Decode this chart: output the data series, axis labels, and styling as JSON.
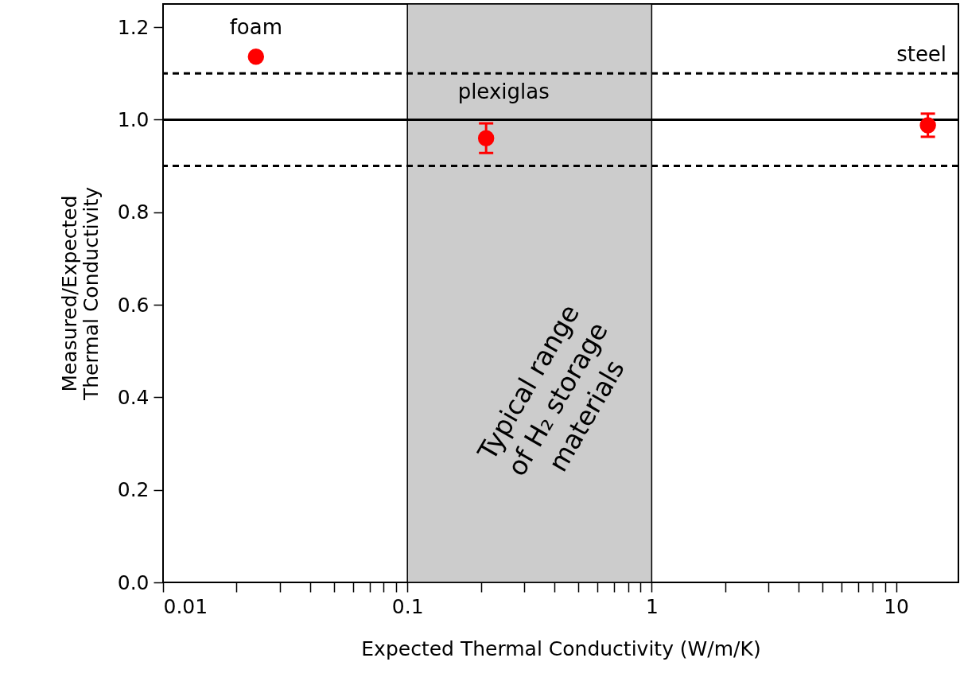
{
  "chart_data": {
    "type": "scatter",
    "xlabel": "Expected Thermal Conductivity (W/m/K)",
    "ylabel": "Measured/Expected\nThermal Conductivity",
    "x": [
      0.024,
      0.21,
      13.5
    ],
    "series": [
      {
        "color": "#ff0000",
        "values": [
          1.136,
          0.96,
          0.988
        ],
        "errors": [
          null,
          0.032,
          0.025
        ]
      }
    ],
    "log": "x",
    "xlim": [
      0.01,
      18
    ],
    "xticks": [
      0.01,
      {
        "value": 0.02,
        "label": null
      },
      {
        "value": 0.03,
        "label": null
      },
      {
        "value": 0.04,
        "label": null
      },
      {
        "value": 0.05,
        "label": null
      },
      {
        "value": 0.06,
        "label": null
      },
      {
        "value": 0.07,
        "label": null
      },
      {
        "value": 0.08,
        "label": null
      },
      {
        "value": 0.09,
        "label": null
      },
      0.1,
      {
        "value": 0.2,
        "label": null
      },
      {
        "value": 0.3,
        "label": null
      },
      {
        "value": 0.4,
        "label": null
      },
      {
        "value": 0.5,
        "label": null
      },
      {
        "value": 0.6,
        "label": null
      },
      {
        "value": 0.7,
        "label": null
      },
      {
        "value": 0.8,
        "label": null
      },
      {
        "value": 0.9,
        "label": null
      },
      1,
      {
        "value": 2,
        "label": null
      },
      {
        "value": 3,
        "label": null
      },
      {
        "value": 4,
        "label": null
      },
      {
        "value": 5,
        "label": null
      },
      {
        "value": 6,
        "label": null
      },
      {
        "value": 7,
        "label": null
      },
      {
        "value": 8,
        "label": null
      },
      {
        "value": 9,
        "label": null
      },
      10
    ],
    "ylim": [
      0,
      1.25
    ],
    "yticks": [
      {
        "value": 0,
        "label": "0.0"
      },
      {
        "value": 0.2,
        "label": "0.2"
      },
      {
        "value": 0.4,
        "label": "0.4"
      },
      {
        "value": 0.6,
        "label": "0.6"
      },
      {
        "value": 0.8,
        "label": "0.8"
      },
      {
        "value": 1,
        "label": "1.0"
      },
      {
        "value": 1.2,
        "label": "1.2"
      }
    ],
    "grid": false,
    "marker": "circle",
    "bands": [
      {
        "axis": "x",
        "from": 0.1,
        "to": 1,
        "label": "Typical range\nof H₂ storage\nmaterials",
        "color": "#cccccc"
      }
    ],
    "ref_lines": [
      {
        "axis": "y",
        "value": 1,
        "line_style": "solid",
        "color": "#000000"
      },
      {
        "axis": "y",
        "value": 1.1,
        "line_style": "dashed",
        "color": "#000000"
      },
      {
        "axis": "y",
        "value": 0.9,
        "line_style": "dashed",
        "color": "#000000"
      }
    ],
    "annotations": [
      "foam",
      "plexiglas",
      "steel"
    ]
  }
}
